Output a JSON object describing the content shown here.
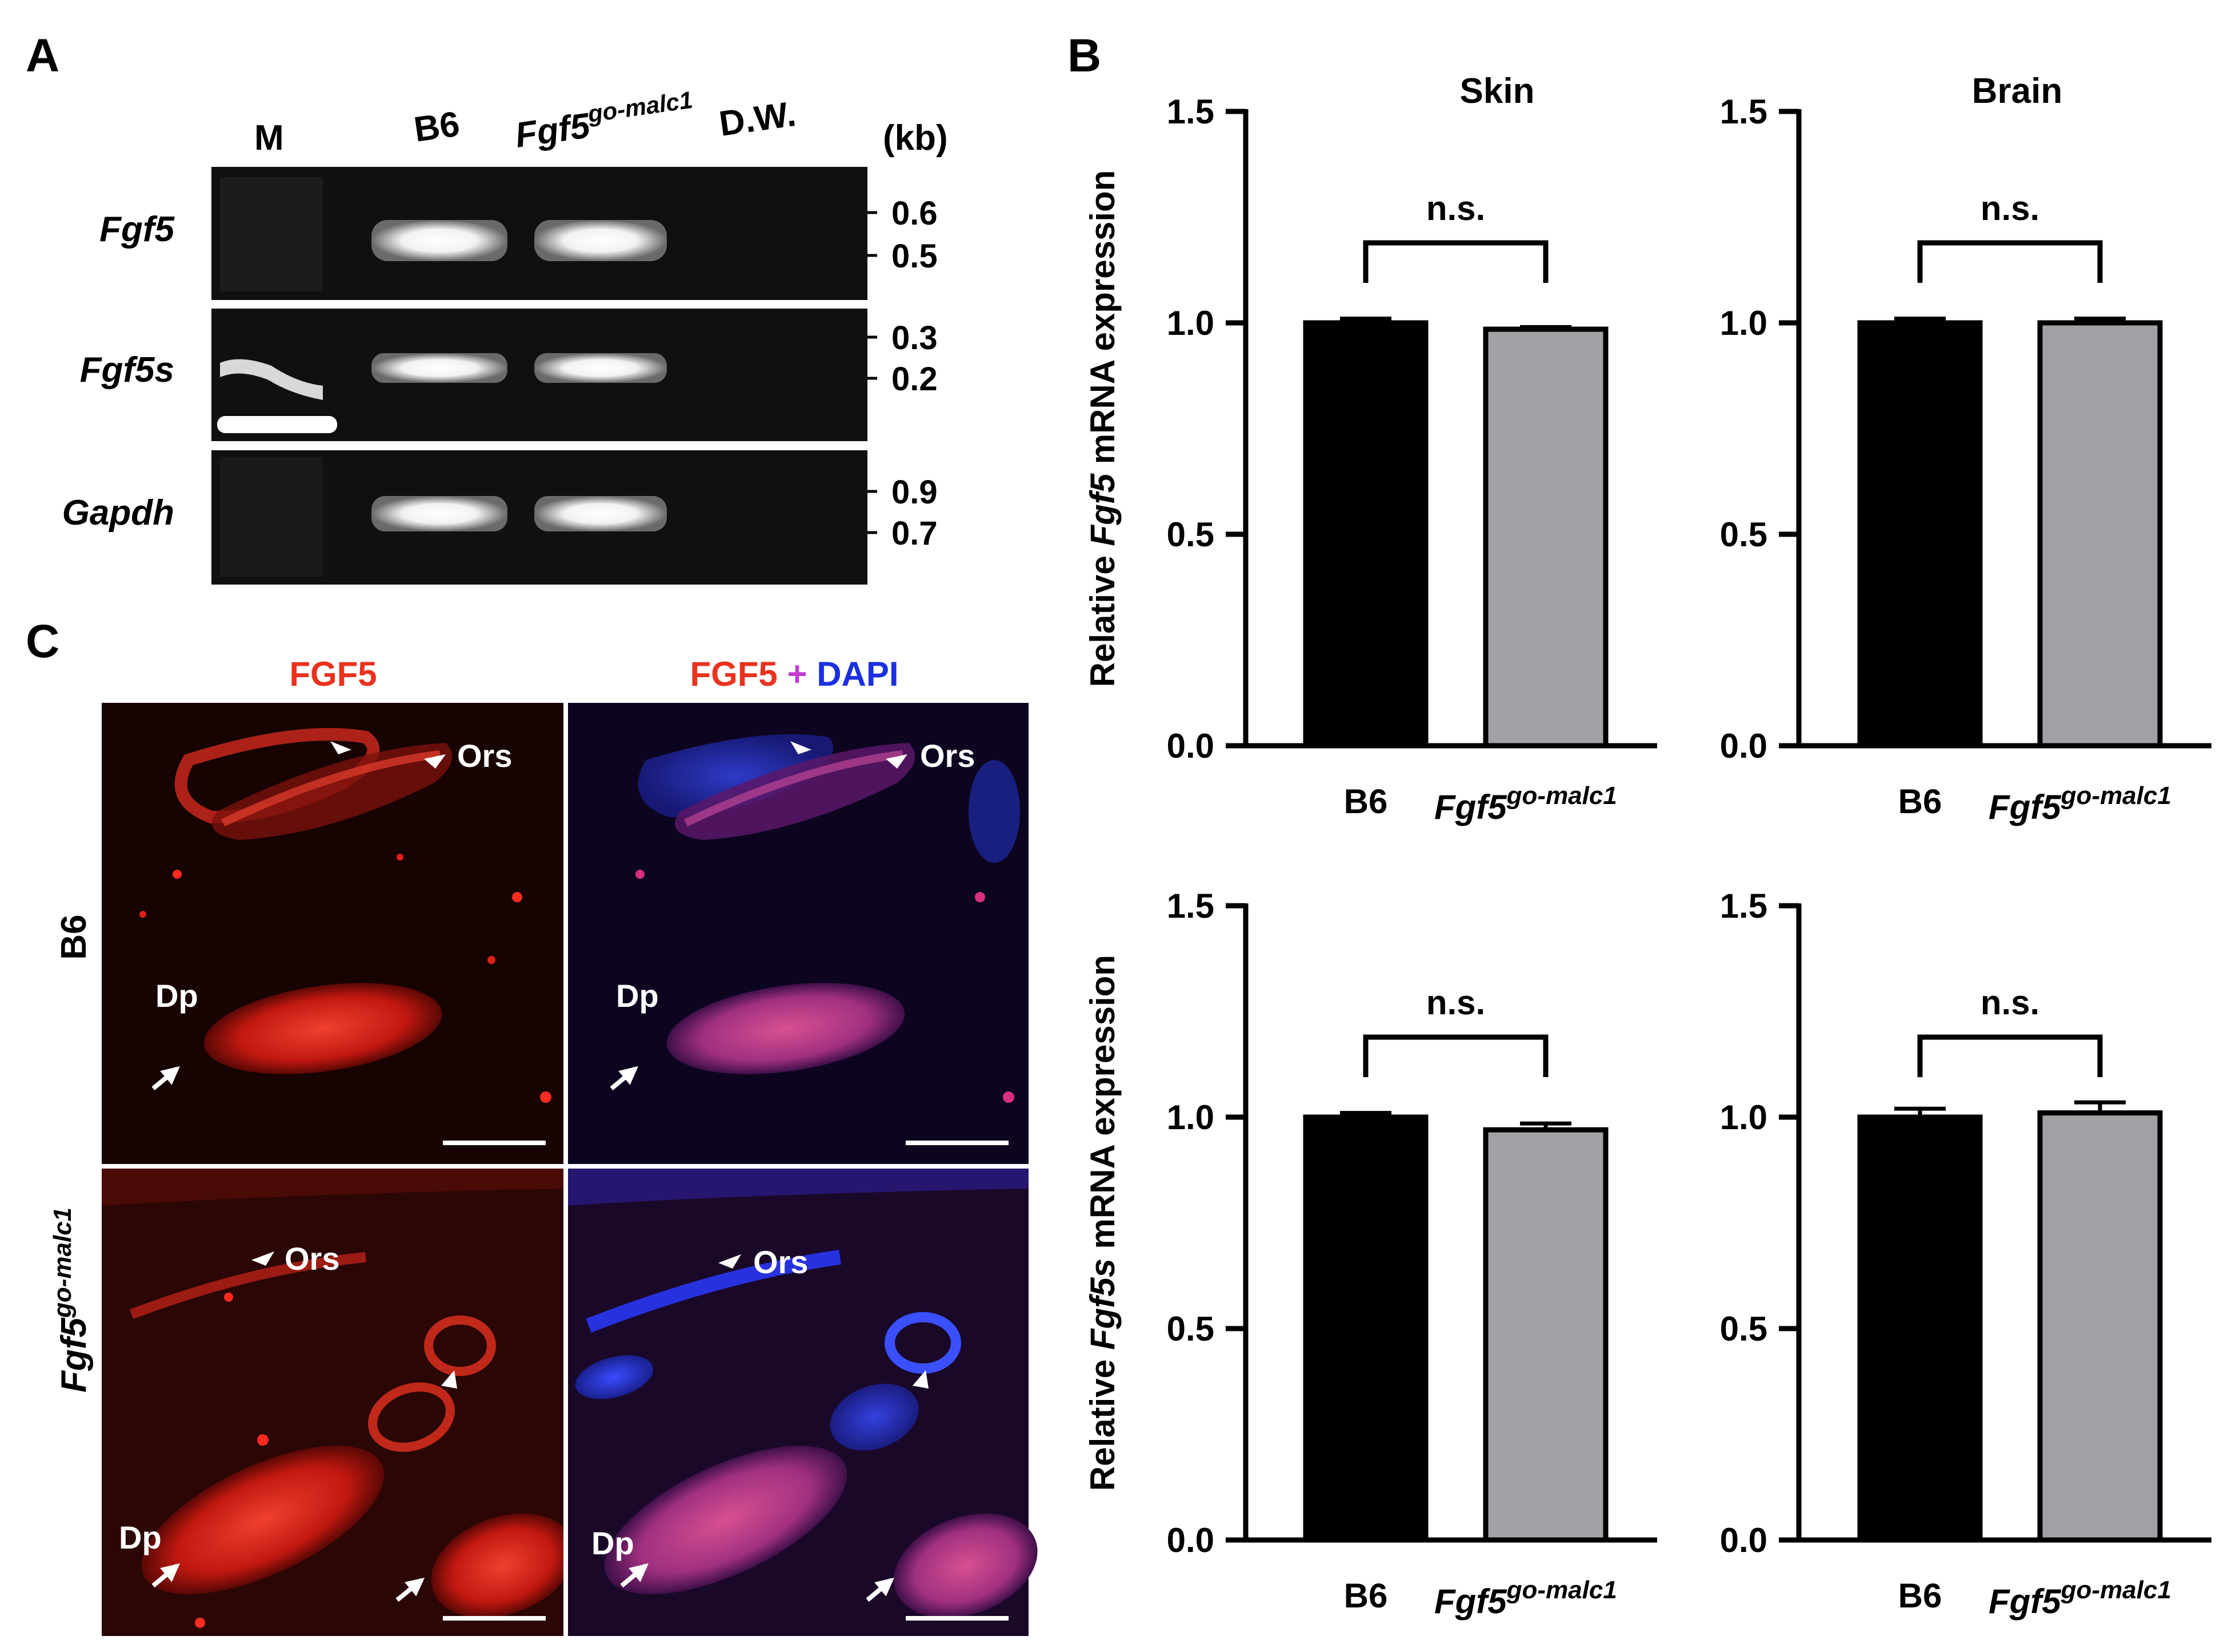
{
  "panels": {
    "A": "A",
    "B": "B",
    "C": "C"
  },
  "gel": {
    "lanes": [
      "M",
      "B6",
      "Fgf5",
      "D.W."
    ],
    "lane_sup": "go-malc1",
    "unit": "(kb)",
    "rows": [
      {
        "gene": "Fgf5",
        "markers": [
          "0.6",
          "0.5"
        ]
      },
      {
        "gene": "Fgf5s",
        "markers": [
          "0.3",
          "0.2"
        ]
      },
      {
        "gene": "Gapdh",
        "markers": [
          "0.9",
          "0.7"
        ]
      }
    ]
  },
  "micro": {
    "col_titles": {
      "fgf5": "FGF5",
      "plus": "+",
      "dapi": "DAPI"
    },
    "row_labels": [
      "B6",
      "Fgf5"
    ],
    "row_label_sup": "go-malc1",
    "labels": {
      "ors": "Ors",
      "dp": "Dp"
    }
  },
  "chart_data": [
    {
      "type": "bar",
      "title": "Skin",
      "ylabel_pre": "Relative ",
      "ylabel_gene": "Fgf5",
      "ylabel_post": " mRNA expression",
      "categories": [
        "B6",
        "Fgf5"
      ],
      "category_sup": "go-malc1",
      "values": [
        1.0,
        0.985
      ],
      "errors": [
        0.01,
        0.005
      ],
      "colors": [
        "#000000",
        "#a2a2a6"
      ],
      "ylim": [
        0,
        1.5
      ],
      "yticks": [
        "0.0",
        "0.5",
        "1.0",
        "1.5"
      ],
      "significance": "n.s."
    },
    {
      "type": "bar",
      "title": "Brain",
      "categories": [
        "B6",
        "Fgf5"
      ],
      "category_sup": "go-malc1",
      "values": [
        1.0,
        1.0
      ],
      "errors": [
        0.01,
        0.01
      ],
      "colors": [
        "#000000",
        "#a2a2a6"
      ],
      "ylim": [
        0,
        1.5
      ],
      "yticks": [
        "0.0",
        "0.5",
        "1.0",
        "1.5"
      ],
      "significance": "n.s."
    },
    {
      "type": "bar",
      "title": "",
      "ylabel_pre": "Relative ",
      "ylabel_gene": "Fgf5s",
      "ylabel_post": " mRNA expression",
      "categories": [
        "B6",
        "Fgf5"
      ],
      "category_sup": "go-malc1",
      "values": [
        1.0,
        0.97
      ],
      "errors": [
        0.01,
        0.015
      ],
      "colors": [
        "#000000",
        "#a2a2a6"
      ],
      "ylim": [
        0,
        1.5
      ],
      "yticks": [
        "0.0",
        "0.5",
        "1.0",
        "1.5"
      ],
      "significance": "n.s."
    },
    {
      "type": "bar",
      "title": "",
      "categories": [
        "B6",
        "Fgf5"
      ],
      "category_sup": "go-malc1",
      "values": [
        1.0,
        1.01
      ],
      "errors": [
        0.02,
        0.025
      ],
      "colors": [
        "#000000",
        "#a2a2a6"
      ],
      "ylim": [
        0,
        1.5
      ],
      "yticks": [
        "0.0",
        "0.5",
        "1.0",
        "1.5"
      ],
      "significance": "n.s."
    }
  ]
}
